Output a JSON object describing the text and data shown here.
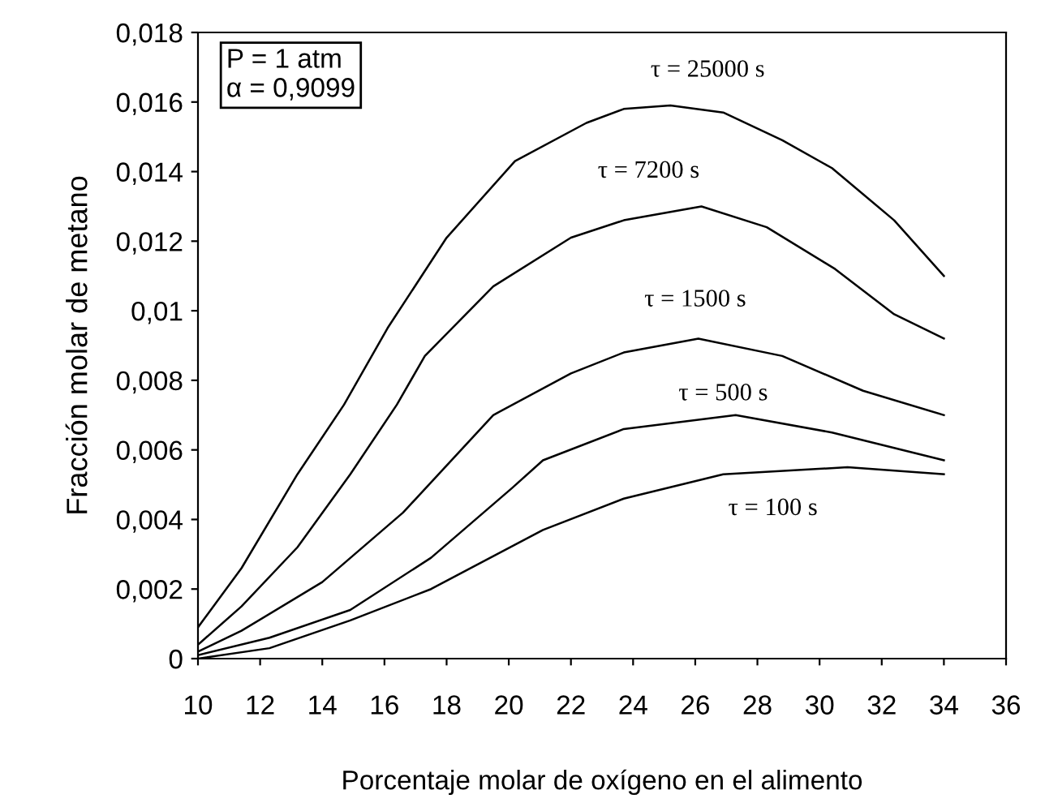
{
  "chart_data": {
    "type": "line",
    "xlabel": "Porcentaje molar de oxígeno en el alimento",
    "ylabel": "Fracción molar de metano",
    "xlim": [
      10,
      36
    ],
    "ylim": [
      0,
      0.018
    ],
    "xticks": [
      10,
      12,
      14,
      16,
      18,
      20,
      22,
      24,
      26,
      28,
      30,
      32,
      34,
      36
    ],
    "yticks": [
      0,
      {
        "value": 0.002,
        "label": "0,002"
      },
      {
        "value": 0.004,
        "label": "0,004"
      },
      {
        "value": 0.006,
        "label": "0,006"
      },
      {
        "value": 0.008,
        "label": "0,008"
      },
      {
        "value": 0.01,
        "label": "0,01"
      },
      {
        "value": 0.012,
        "label": "0,012"
      },
      {
        "value": 0.014,
        "label": "0,014"
      },
      {
        "value": 0.016,
        "label": "0,016"
      },
      {
        "value": 0.018,
        "label": "0,018"
      }
    ],
    "grid": false,
    "legend": false,
    "marker": "none",
    "line_style": "solid",
    "annotations": [
      "P = 1 atm\nα = 0,9099"
    ],
    "series": [
      {
        "name": "τ = 25000 s",
        "color": "#000000",
        "x": [
          10,
          11.4,
          13.2,
          14.7,
          16.1,
          18.0,
          20.2,
          22.5,
          23.7,
          25.2,
          26.9,
          28.8,
          30.4,
          32.4,
          34
        ],
        "values": [
          0.0009,
          0.0026,
          0.0053,
          0.0073,
          0.0095,
          0.0121,
          0.0143,
          0.0154,
          0.0158,
          0.0159,
          0.0157,
          0.0149,
          0.0141,
          0.0126,
          0.011
        ]
      },
      {
        "name": "τ = 7200 s",
        "color": "#000000",
        "x": [
          10,
          11.4,
          13.2,
          14.9,
          16.4,
          17.3,
          19.5,
          22.0,
          23.7,
          26.2,
          28.3,
          30.5,
          32.4,
          34
        ],
        "values": [
          0.0004,
          0.0015,
          0.0032,
          0.0053,
          0.0073,
          0.0087,
          0.0107,
          0.0121,
          0.0126,
          0.013,
          0.0124,
          0.0112,
          0.0099,
          0.0092
        ]
      },
      {
        "name": "τ = 1500 s",
        "color": "#000000",
        "x": [
          10,
          11.4,
          14.0,
          16.6,
          19.5,
          22.0,
          23.7,
          26.1,
          28.8,
          31.4,
          34
        ],
        "values": [
          0.0002,
          0.0008,
          0.0022,
          0.0042,
          0.007,
          0.0082,
          0.0088,
          0.0092,
          0.0087,
          0.0077,
          0.007
        ]
      },
      {
        "name": "τ = 500 s",
        "color": "#000000",
        "x": [
          10,
          12.3,
          14.9,
          17.5,
          20.1,
          21.1,
          23.7,
          27.3,
          30.4,
          34
        ],
        "values": [
          0.0001,
          0.0006,
          0.0014,
          0.0029,
          0.0049,
          0.0057,
          0.0066,
          0.007,
          0.0065,
          0.0057
        ]
      },
      {
        "name": "τ = 100 s",
        "color": "#000000",
        "x": [
          10,
          12.3,
          14.9,
          17.5,
          21.1,
          23.7,
          26.9,
          30.9,
          34
        ],
        "values": [
          0.0,
          0.0003,
          0.0011,
          0.002,
          0.0037,
          0.0046,
          0.0053,
          0.0055,
          0.0053
        ]
      }
    ]
  }
}
